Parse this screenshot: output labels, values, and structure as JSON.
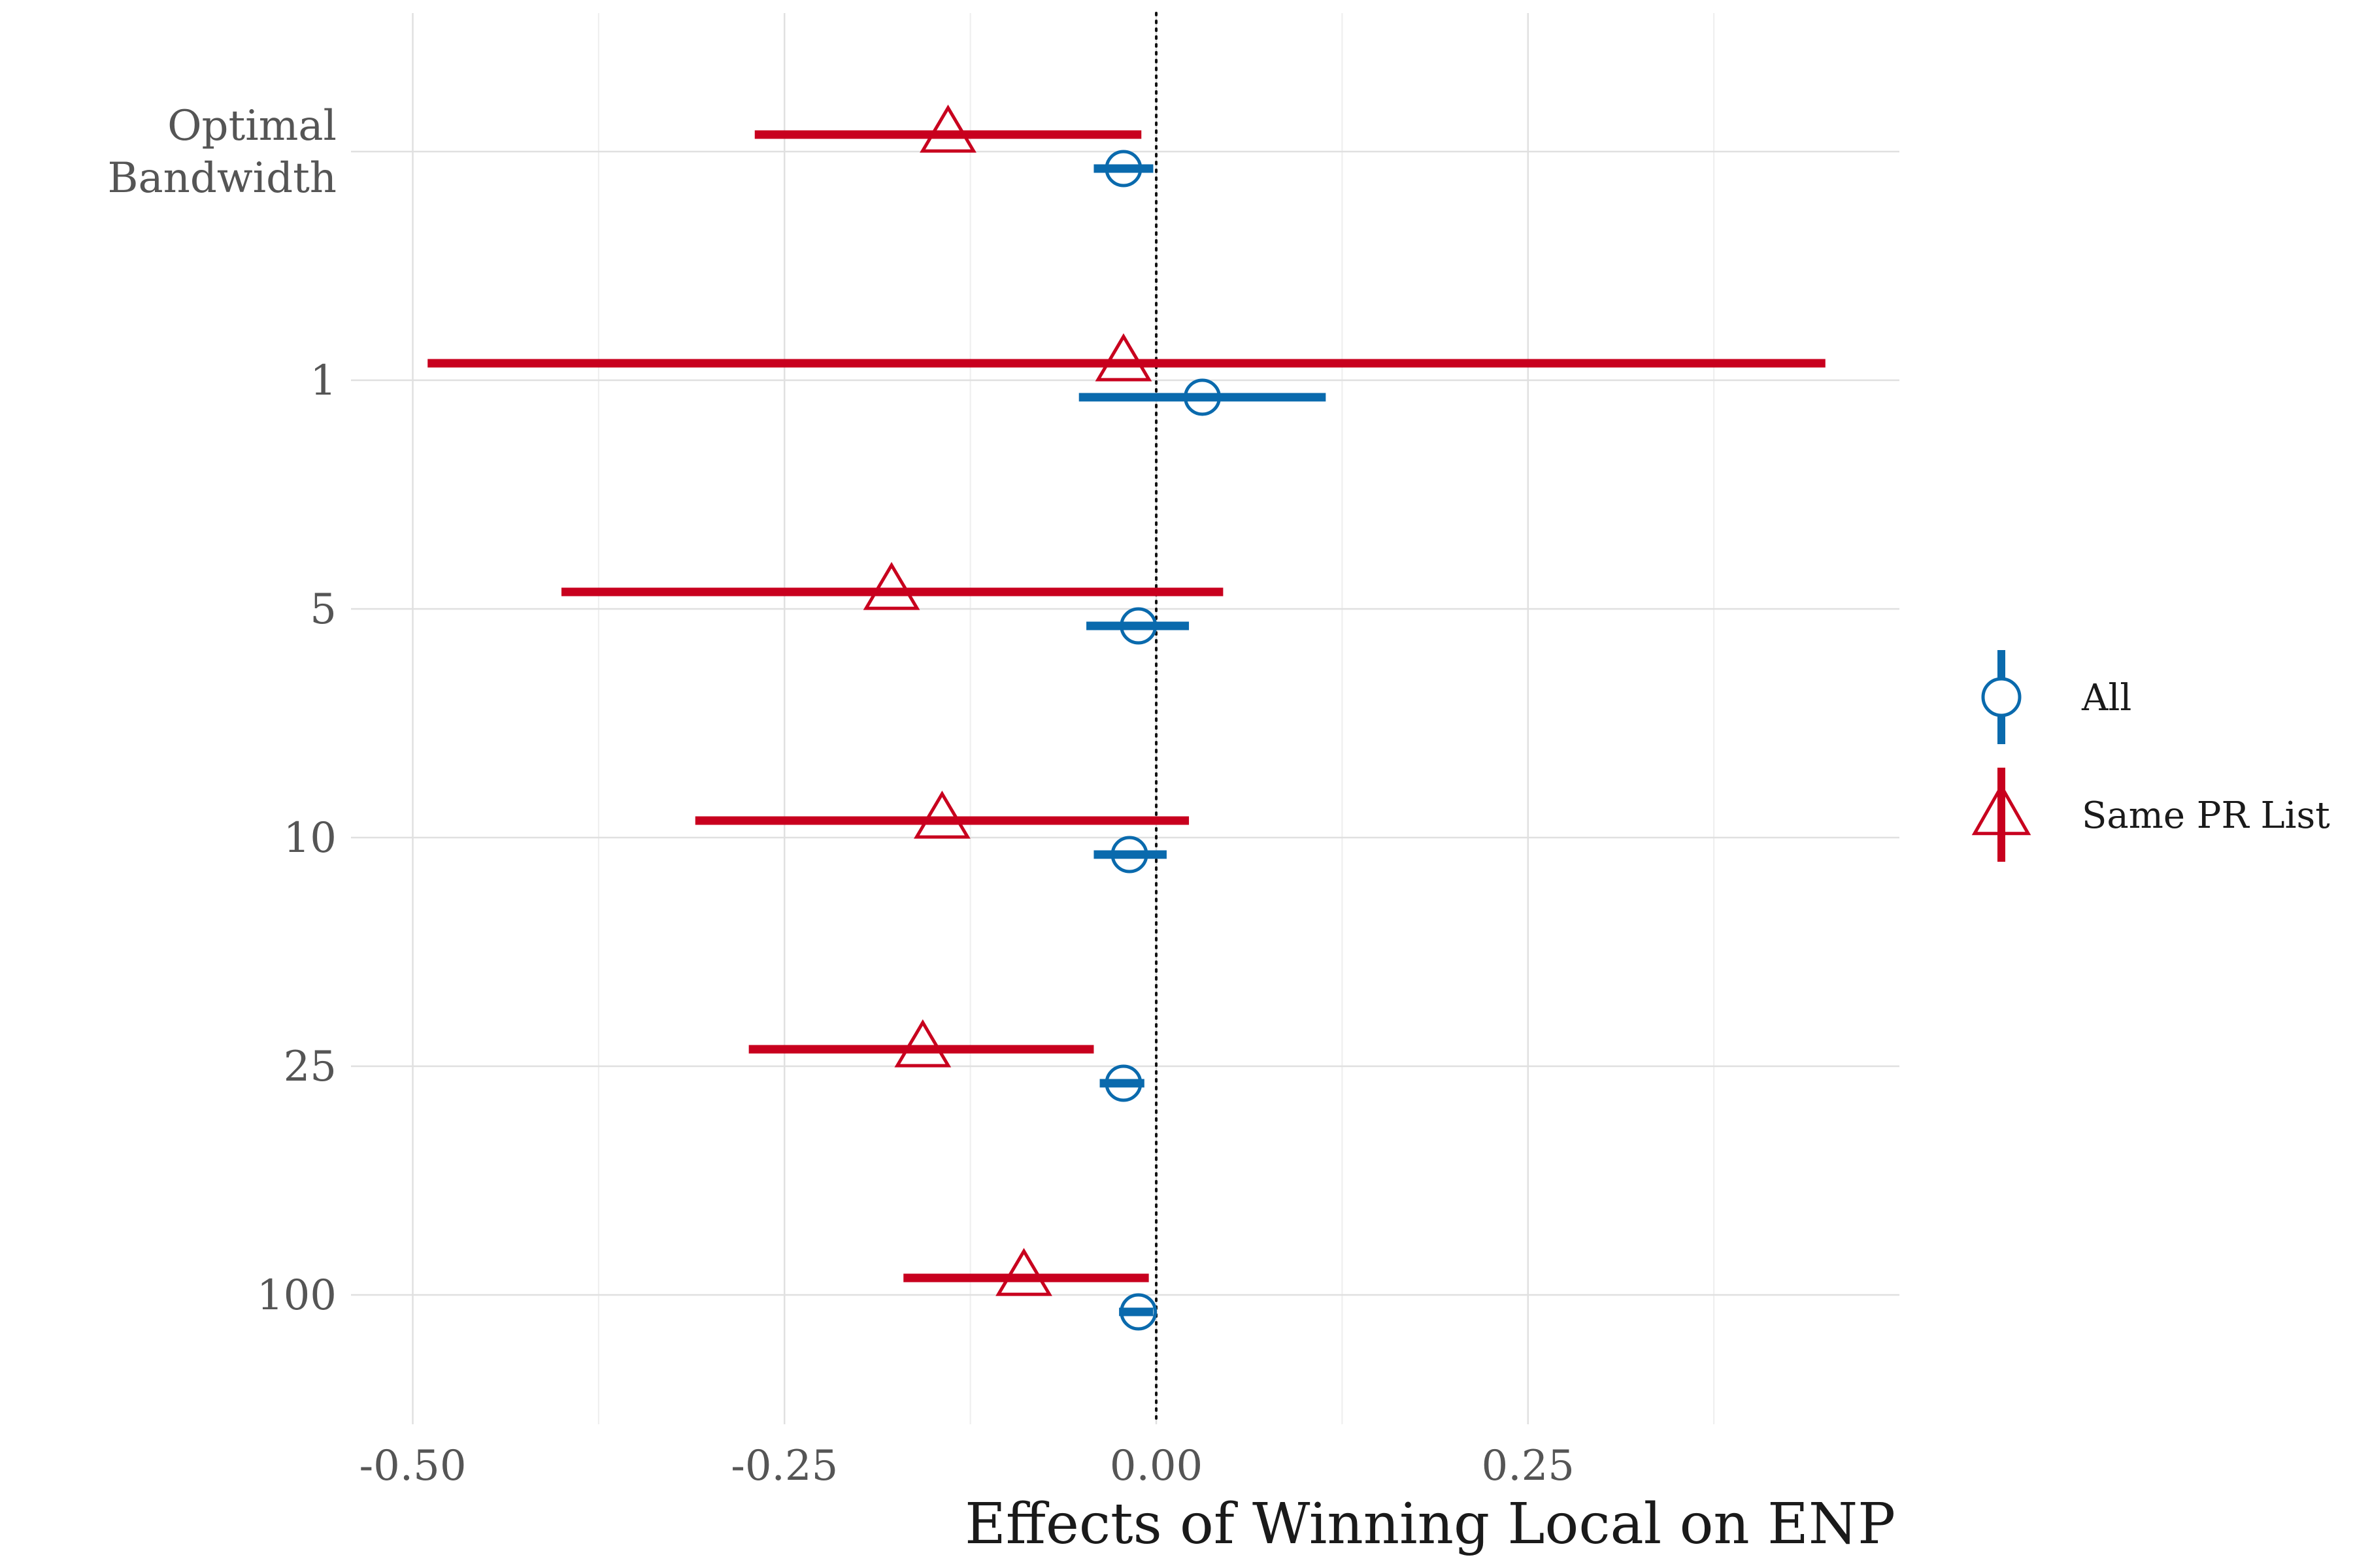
{
  "chart_data": {
    "type": "scatter",
    "subtype": "coefficient-plot",
    "title": "",
    "xlabel": "Effects of Winning Local on ENP",
    "ylabel": "",
    "categories": [
      "Optimal\nBandwidth",
      "1",
      "5",
      "10",
      "25",
      "100"
    ],
    "xlim": [
      -0.525,
      0.5
    ],
    "x_ticks": [
      -0.5,
      -0.25,
      0.0,
      0.25
    ],
    "x_tick_labels": [
      "-0.50",
      "-0.25",
      "0.00",
      "0.25"
    ],
    "reference_line": 0.0,
    "grid": true,
    "legend_position": "right",
    "series": [
      {
        "name": "Same PR List",
        "color": "#c8001e",
        "marker": "triangle-open",
        "estimate": [
          -0.14,
          -0.022,
          -0.178,
          -0.144,
          -0.157,
          -0.089
        ],
        "lower": [
          -0.27,
          -0.49,
          -0.4,
          -0.31,
          -0.274,
          -0.17
        ],
        "upper": [
          -0.01,
          0.45,
          0.045,
          0.022,
          -0.042,
          -0.005
        ]
      },
      {
        "name": "All",
        "color": "#0a6aad",
        "marker": "circle-open",
        "estimate": [
          -0.022,
          0.031,
          -0.012,
          -0.018,
          -0.022,
          -0.012
        ],
        "lower": [
          -0.042,
          -0.052,
          -0.047,
          -0.042,
          -0.038,
          -0.025
        ],
        "upper": [
          -0.002,
          0.114,
          0.022,
          0.007,
          -0.008,
          -0.002
        ]
      }
    ]
  }
}
